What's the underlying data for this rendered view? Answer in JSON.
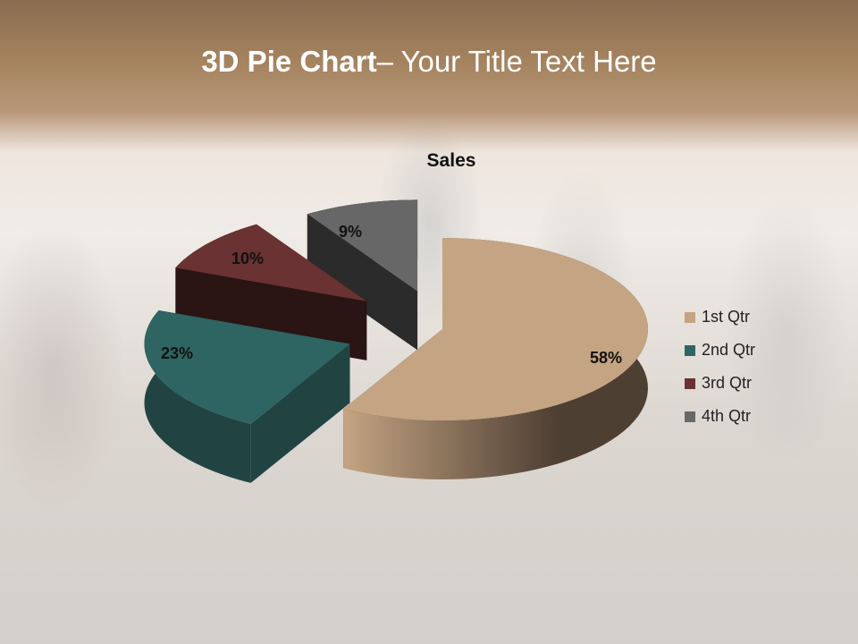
{
  "slide": {
    "title_bold": "3D Pie Chart",
    "title_rest": "– Your Title Text Here"
  },
  "chart_data": {
    "type": "pie",
    "variant": "3d-exploded",
    "title": "Sales",
    "categories": [
      "1st Qtr",
      "2nd Qtr",
      "3rd Qtr",
      "4th Qtr"
    ],
    "values": [
      58,
      23,
      10,
      9
    ],
    "data_labels": [
      "58%",
      "23%",
      "10%",
      "9%"
    ],
    "colors": [
      "#c4a482",
      "#2e6462",
      "#6a3232",
      "#676767"
    ],
    "side_colors": [
      "#4e3f33",
      "#214443",
      "#2a1414",
      "#2b2b2b"
    ],
    "legend_position": "right"
  }
}
